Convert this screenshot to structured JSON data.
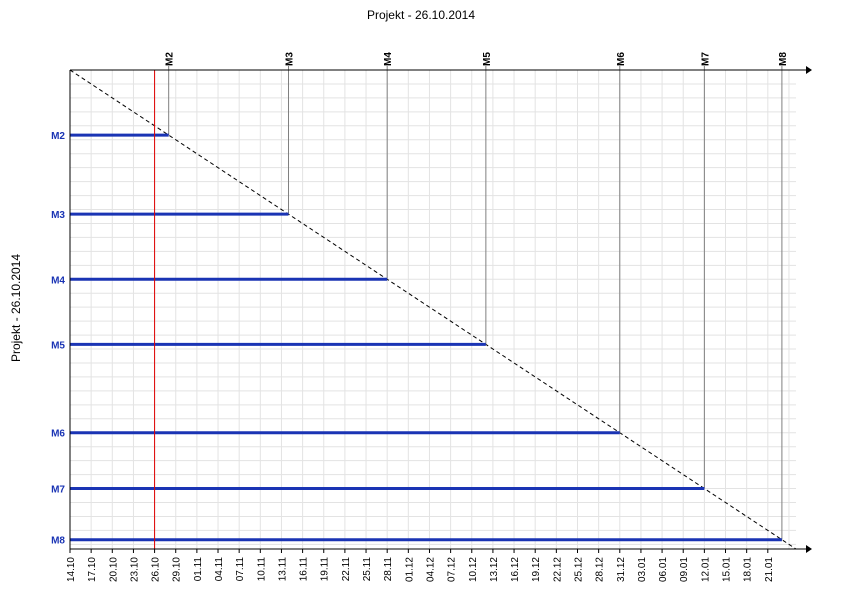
{
  "chart_data": {
    "type": "milestone-trend",
    "title": "Projekt - 26.10.2014",
    "ylabel": "Projekt - 26.10.2014",
    "x_ticks": [
      "14.10",
      "17.10",
      "20.10",
      "23.10",
      "26.10",
      "29.10",
      "01.11",
      "04.11",
      "07.11",
      "10.11",
      "13.11",
      "16.11",
      "19.11",
      "22.11",
      "25.11",
      "28.11",
      "01.12",
      "04.12",
      "07.12",
      "10.12",
      "13.12",
      "16.12",
      "19.12",
      "22.12",
      "25.12",
      "28.12",
      "31.12",
      "03.01",
      "06.01",
      "09.01",
      "12.01",
      "15.01",
      "18.01",
      "21.01"
    ],
    "x_range": [
      "14.10",
      "25.01"
    ],
    "status_date": "26.10",
    "milestones": [
      {
        "name": "M2",
        "date": "28.10"
      },
      {
        "name": "M3",
        "date": "14.11"
      },
      {
        "name": "M4",
        "date": "28.11"
      },
      {
        "name": "M5",
        "date": "12.12"
      },
      {
        "name": "M6",
        "date": "31.12"
      },
      {
        "name": "M7",
        "date": "12.01"
      },
      {
        "name": "M8",
        "date": "23.01"
      }
    ],
    "grid": true,
    "colors": {
      "bar": "#1a34b4",
      "label": "#1a34b4",
      "status_line": "#e00000",
      "grid": "#e3e3e3",
      "diagonal": "#000000",
      "drop_line": "#808080"
    }
  }
}
